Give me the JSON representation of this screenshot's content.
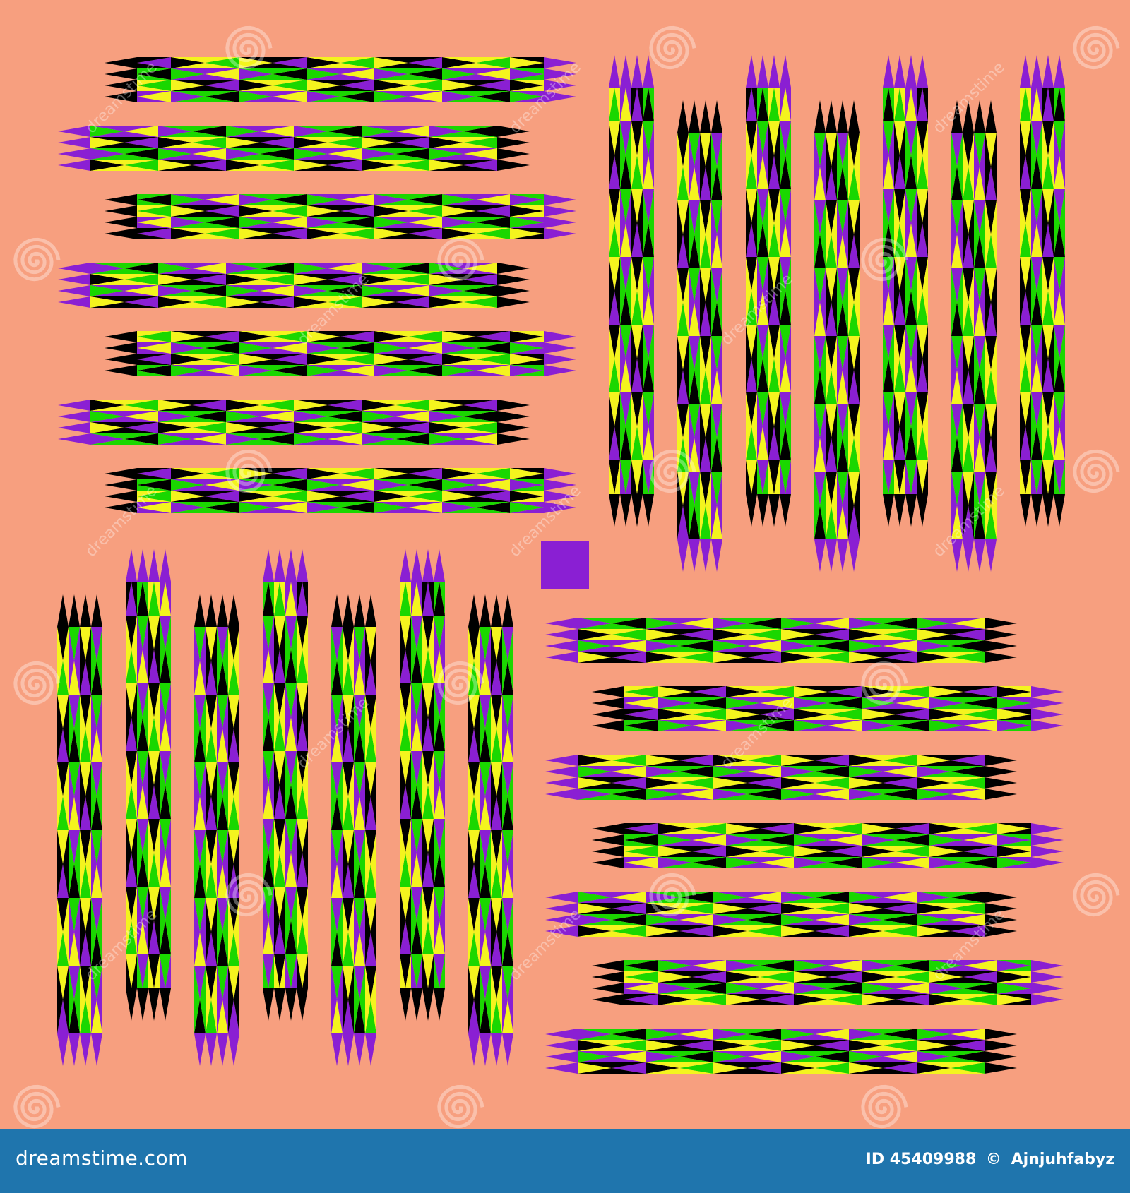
{
  "colors": {
    "background": "#f79f7f",
    "purple": "#8a1fd3",
    "green": "#1ad700",
    "yellow": "#f4f41e",
    "black": "#000000",
    "footer": "#1f75ad",
    "watermark": "#ffffff"
  },
  "icons": {
    "watermark_logo": "spiral-icon",
    "center_marker": "purple-square-icon"
  },
  "watermark": {
    "text": "dreamstime"
  },
  "footer": {
    "brand": "dreamstime.com",
    "id_label": "ID",
    "id_value": "45409988",
    "separator": "©",
    "author": "Ajnjuhfabyz"
  }
}
